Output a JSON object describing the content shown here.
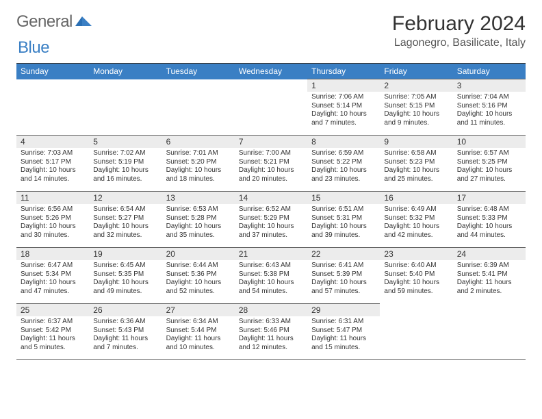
{
  "logo": {
    "text1": "General",
    "text2": "Blue"
  },
  "title": "February 2024",
  "location": "Lagonegro, Basilicate, Italy",
  "colors": {
    "header_bg": "#3a7fc4",
    "daynum_bg": "#ececec",
    "border": "#666666",
    "text": "#333333"
  },
  "weekdays": [
    "Sunday",
    "Monday",
    "Tuesday",
    "Wednesday",
    "Thursday",
    "Friday",
    "Saturday"
  ],
  "weeks": [
    [
      null,
      null,
      null,
      null,
      {
        "n": "1",
        "sr": "7:06 AM",
        "ss": "5:14 PM",
        "dl": "10 hours and 7 minutes."
      },
      {
        "n": "2",
        "sr": "7:05 AM",
        "ss": "5:15 PM",
        "dl": "10 hours and 9 minutes."
      },
      {
        "n": "3",
        "sr": "7:04 AM",
        "ss": "5:16 PM",
        "dl": "10 hours and 11 minutes."
      }
    ],
    [
      {
        "n": "4",
        "sr": "7:03 AM",
        "ss": "5:17 PM",
        "dl": "10 hours and 14 minutes."
      },
      {
        "n": "5",
        "sr": "7:02 AM",
        "ss": "5:19 PM",
        "dl": "10 hours and 16 minutes."
      },
      {
        "n": "6",
        "sr": "7:01 AM",
        "ss": "5:20 PM",
        "dl": "10 hours and 18 minutes."
      },
      {
        "n": "7",
        "sr": "7:00 AM",
        "ss": "5:21 PM",
        "dl": "10 hours and 20 minutes."
      },
      {
        "n": "8",
        "sr": "6:59 AM",
        "ss": "5:22 PM",
        "dl": "10 hours and 23 minutes."
      },
      {
        "n": "9",
        "sr": "6:58 AM",
        "ss": "5:23 PM",
        "dl": "10 hours and 25 minutes."
      },
      {
        "n": "10",
        "sr": "6:57 AM",
        "ss": "5:25 PM",
        "dl": "10 hours and 27 minutes."
      }
    ],
    [
      {
        "n": "11",
        "sr": "6:56 AM",
        "ss": "5:26 PM",
        "dl": "10 hours and 30 minutes."
      },
      {
        "n": "12",
        "sr": "6:54 AM",
        "ss": "5:27 PM",
        "dl": "10 hours and 32 minutes."
      },
      {
        "n": "13",
        "sr": "6:53 AM",
        "ss": "5:28 PM",
        "dl": "10 hours and 35 minutes."
      },
      {
        "n": "14",
        "sr": "6:52 AM",
        "ss": "5:29 PM",
        "dl": "10 hours and 37 minutes."
      },
      {
        "n": "15",
        "sr": "6:51 AM",
        "ss": "5:31 PM",
        "dl": "10 hours and 39 minutes."
      },
      {
        "n": "16",
        "sr": "6:49 AM",
        "ss": "5:32 PM",
        "dl": "10 hours and 42 minutes."
      },
      {
        "n": "17",
        "sr": "6:48 AM",
        "ss": "5:33 PM",
        "dl": "10 hours and 44 minutes."
      }
    ],
    [
      {
        "n": "18",
        "sr": "6:47 AM",
        "ss": "5:34 PM",
        "dl": "10 hours and 47 minutes."
      },
      {
        "n": "19",
        "sr": "6:45 AM",
        "ss": "5:35 PM",
        "dl": "10 hours and 49 minutes."
      },
      {
        "n": "20",
        "sr": "6:44 AM",
        "ss": "5:36 PM",
        "dl": "10 hours and 52 minutes."
      },
      {
        "n": "21",
        "sr": "6:43 AM",
        "ss": "5:38 PM",
        "dl": "10 hours and 54 minutes."
      },
      {
        "n": "22",
        "sr": "6:41 AM",
        "ss": "5:39 PM",
        "dl": "10 hours and 57 minutes."
      },
      {
        "n": "23",
        "sr": "6:40 AM",
        "ss": "5:40 PM",
        "dl": "10 hours and 59 minutes."
      },
      {
        "n": "24",
        "sr": "6:39 AM",
        "ss": "5:41 PM",
        "dl": "11 hours and 2 minutes."
      }
    ],
    [
      {
        "n": "25",
        "sr": "6:37 AM",
        "ss": "5:42 PM",
        "dl": "11 hours and 5 minutes."
      },
      {
        "n": "26",
        "sr": "6:36 AM",
        "ss": "5:43 PM",
        "dl": "11 hours and 7 minutes."
      },
      {
        "n": "27",
        "sr": "6:34 AM",
        "ss": "5:44 PM",
        "dl": "11 hours and 10 minutes."
      },
      {
        "n": "28",
        "sr": "6:33 AM",
        "ss": "5:46 PM",
        "dl": "11 hours and 12 minutes."
      },
      {
        "n": "29",
        "sr": "6:31 AM",
        "ss": "5:47 PM",
        "dl": "11 hours and 15 minutes."
      },
      null,
      null
    ]
  ],
  "labels": {
    "sunrise": "Sunrise:",
    "sunset": "Sunset:",
    "daylight": "Daylight:"
  }
}
